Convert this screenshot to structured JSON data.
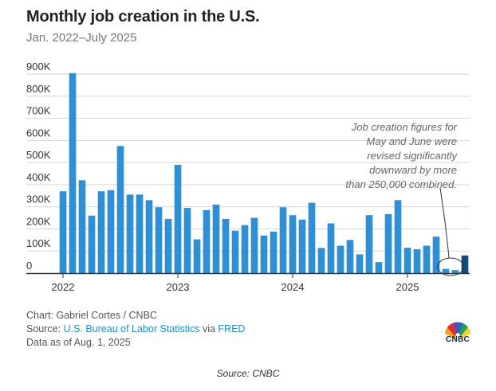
{
  "title": "Monthly job creation in the U.S.",
  "subtitle": "Jan. 2022–July 2025",
  "annotation": [
    "Job creation figures for",
    "May and June were",
    "revised significantly",
    "downward by more",
    "than 250,000 combined."
  ],
  "footer": {
    "chart_credit": "Chart: Gabriel Cortes / CNBC",
    "source_prefix": "Source: ",
    "source_link1": "U.S. Bureau of Labor Statistics",
    "source_mid": " via ",
    "source_link2": "FRED",
    "data_as_of": "Data as of Aug. 1, 2025"
  },
  "logo_text": "CNBC",
  "caption": "Source: CNBC",
  "colors": {
    "bar": "#2f8fd6",
    "highlight_bar": "#0f4b7e",
    "grid": "#d6d6d6",
    "axis": "#333333",
    "annotation": "#666666"
  },
  "chart_data": {
    "type": "bar",
    "title": "Monthly job creation in the U.S.",
    "subtitle": "Jan. 2022–July 2025",
    "xlabel": "",
    "ylabel": "",
    "ylim": [
      0,
      900000
    ],
    "grid": true,
    "y_ticks": [
      0,
      100000,
      200000,
      300000,
      400000,
      500000,
      600000,
      700000,
      800000,
      900000
    ],
    "y_tick_labels": [
      "0",
      "100K",
      "200K",
      "300K",
      "400K",
      "500K",
      "600K",
      "700K",
      "800K",
      "900K"
    ],
    "x_tick_labels": [
      {
        "label": "2022",
        "month": "2022-01"
      },
      {
        "label": "2023",
        "month": "2023-01"
      },
      {
        "label": "2024",
        "month": "2024-01"
      },
      {
        "label": "2025",
        "month": "2025-01"
      }
    ],
    "highlight_month": "2025-07",
    "categories": [
      "2022-01",
      "2022-02",
      "2022-03",
      "2022-04",
      "2022-05",
      "2022-06",
      "2022-07",
      "2022-08",
      "2022-09",
      "2022-10",
      "2022-11",
      "2022-12",
      "2023-01",
      "2023-02",
      "2023-03",
      "2023-04",
      "2023-05",
      "2023-06",
      "2023-07",
      "2023-08",
      "2023-09",
      "2023-10",
      "2023-11",
      "2023-12",
      "2024-01",
      "2024-02",
      "2024-03",
      "2024-04",
      "2024-05",
      "2024-06",
      "2024-07",
      "2024-08",
      "2024-09",
      "2024-10",
      "2024-11",
      "2024-12",
      "2025-01",
      "2025-02",
      "2025-03",
      "2025-04",
      "2025-05",
      "2025-06",
      "2025-07"
    ],
    "values": [
      370000,
      904000,
      420000,
      260000,
      370000,
      375000,
      575000,
      355000,
      355000,
      330000,
      298000,
      245000,
      490000,
      295000,
      153000,
      285000,
      310000,
      245000,
      192000,
      217000,
      250000,
      170000,
      188000,
      298000,
      262000,
      242000,
      318000,
      114000,
      225000,
      124000,
      150000,
      85000,
      262000,
      50000,
      267000,
      330000,
      115000,
      108000,
      124000,
      165000,
      19000,
      14000,
      80000
    ]
  }
}
